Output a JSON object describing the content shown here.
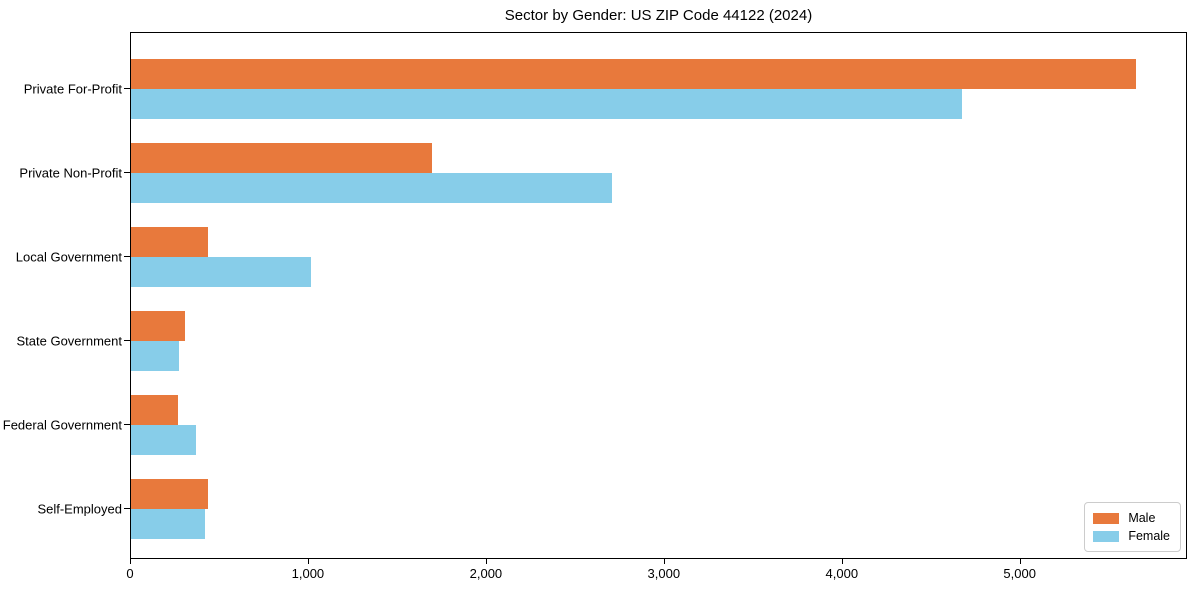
{
  "chart_data": {
    "type": "bar",
    "orientation": "horizontal",
    "title": "Sector by Gender: US ZIP Code 44122 (2024)",
    "categories": [
      "Private For-Profit",
      "Private Non-Profit",
      "Local Government",
      "State Government",
      "Federal Government",
      "Self-Employed"
    ],
    "series": [
      {
        "name": "Male",
        "color": "#e8793c",
        "values": [
          5650,
          1690,
          430,
          305,
          265,
          430
        ]
      },
      {
        "name": "Female",
        "color": "#87cde9",
        "values": [
          4670,
          2700,
          1010,
          270,
          365,
          415
        ]
      }
    ],
    "xlabel": "",
    "ylabel": "",
    "xlim": [
      0,
      5940
    ],
    "xticks": [
      {
        "value": 0,
        "label": "0"
      },
      {
        "value": 1000,
        "label": "1,000"
      },
      {
        "value": 2000,
        "label": "2,000"
      },
      {
        "value": 3000,
        "label": "3,000"
      },
      {
        "value": 4000,
        "label": "4,000"
      },
      {
        "value": 5000,
        "label": "5,000"
      }
    ],
    "grid": false,
    "legend_position": "lower right",
    "background_color": "#ffffff",
    "spine_color": "#000000"
  }
}
